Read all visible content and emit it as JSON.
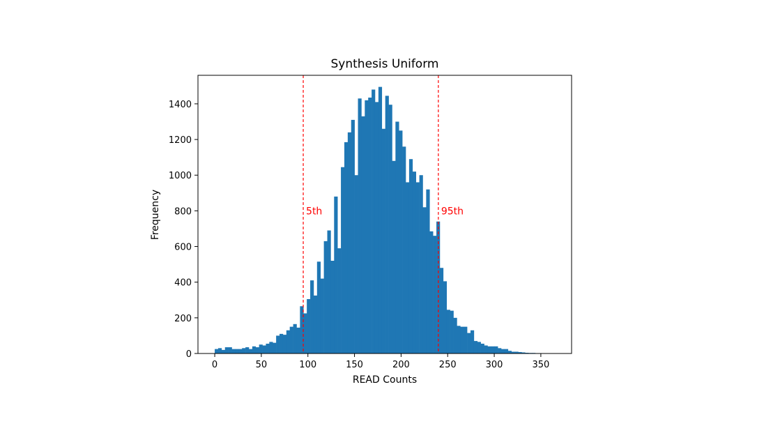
{
  "chart_data": {
    "type": "bar",
    "title": "Synthesis Uniform",
    "xlabel": "READ Counts",
    "ylabel": "Frequency",
    "xlim": [
      -18,
      383
    ],
    "ylim": [
      0,
      1560
    ],
    "xticks": [
      0,
      50,
      100,
      150,
      200,
      250,
      300,
      350
    ],
    "yticks": [
      0,
      200,
      400,
      600,
      800,
      1000,
      1200,
      1400
    ],
    "bar_color": "#1f77b4",
    "bin_start": 0,
    "bin_width": 3.66,
    "values": [
      25,
      30,
      20,
      35,
      35,
      25,
      25,
      25,
      30,
      35,
      25,
      40,
      35,
      50,
      45,
      55,
      65,
      60,
      100,
      110,
      105,
      130,
      150,
      165,
      145,
      265,
      225,
      305,
      410,
      325,
      515,
      420,
      630,
      690,
      520,
      880,
      590,
      1045,
      1185,
      1240,
      1310,
      1000,
      1430,
      1330,
      1420,
      1435,
      1480,
      1410,
      1495,
      1260,
      1445,
      1395,
      1080,
      1300,
      1250,
      1160,
      960,
      1090,
      1020,
      960,
      1000,
      820,
      920,
      685,
      660,
      740,
      480,
      405,
      245,
      240,
      200,
      155,
      150,
      150,
      115,
      130,
      70,
      65,
      55,
      45,
      40,
      40,
      40,
      30,
      25,
      25,
      15,
      10,
      10,
      8,
      6,
      4,
      3,
      3,
      2,
      2,
      1,
      1,
      1,
      1,
      1
    ],
    "reference_lines": [
      {
        "label": "5th",
        "x": 95,
        "color": "#ff0000",
        "style": "dashed"
      },
      {
        "label": "95th",
        "x": 240,
        "color": "#ff0000",
        "style": "dashed"
      }
    ],
    "grid": false,
    "legend": false
  }
}
